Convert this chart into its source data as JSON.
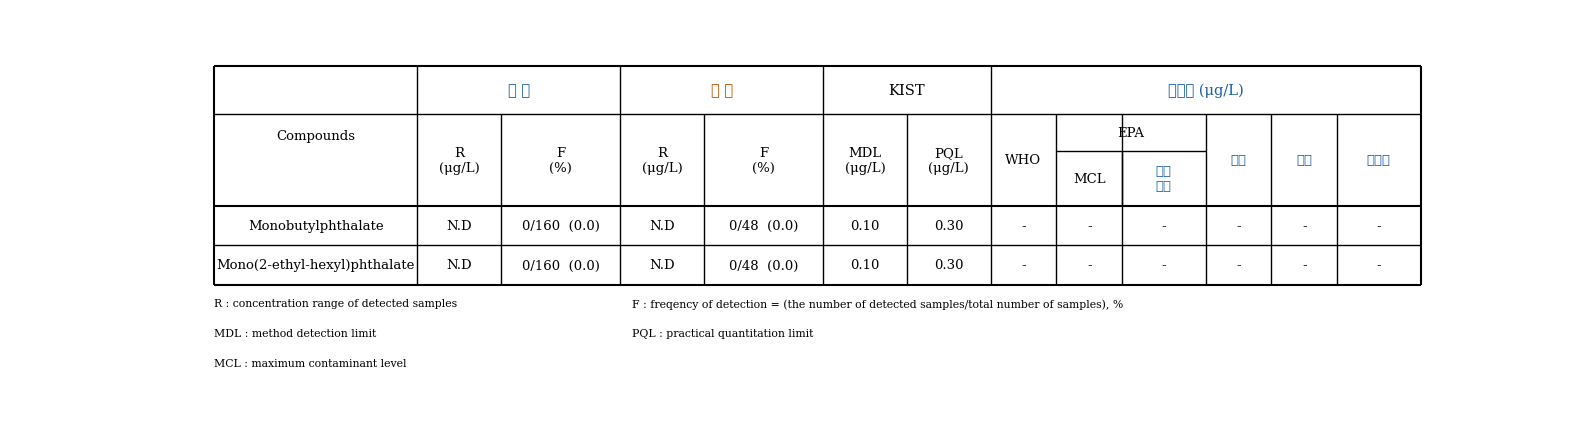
{
  "background_color": "#ffffff",
  "header_korean_color": "#1a5fa8",
  "header_orange_color": "#c45000",
  "footnotes_left": [
    "R : concentration range of detected samples",
    "MDL : method detection limit",
    "MCL : maximum contaminant level"
  ],
  "footnotes_right": [
    "F : freqency of detection = (the number of detected samples/total number of samples), %",
    "PQL : practical quantitation limit"
  ],
  "group_row": {
    "jeongsu": "정 수",
    "wonsu": "원 수",
    "kist": "KIST",
    "gijun": "기준값 (μg/L)"
  },
  "sub_row": {
    "compounds": "Compounds",
    "R_ug": "R\n(μg/L)",
    "F_pct": "F\n(%)",
    "MDL": "MDL\n(μg/L)",
    "PQL": "PQL\n(μg/L)",
    "WHO": "WHO",
    "EPA": "EPA",
    "MCL": "MCL",
    "balam": "발암\n그룹",
    "ilbon": "일본",
    "hoju": "호주",
    "canada": "캐나다"
  },
  "rows": [
    [
      "Monobutylphthalate",
      "N.D",
      "0/160  (0.0)",
      "N.D",
      "0/48  (0.0)",
      "0.10",
      "0.30",
      "-",
      "-",
      "-",
      "-",
      "-",
      "-"
    ],
    [
      "Mono(2-ethyl-hexyl)phthalate",
      "N.D",
      "0/160  (0.0)",
      "N.D",
      "0/48  (0.0)",
      "0.10",
      "0.30",
      "-",
      "-",
      "-",
      "-",
      "-",
      "-"
    ]
  ],
  "col_widths_rel": [
    1.7,
    0.7,
    1.0,
    0.7,
    1.0,
    0.7,
    0.7,
    0.55,
    0.55,
    0.7,
    0.55,
    0.55,
    0.7
  ]
}
